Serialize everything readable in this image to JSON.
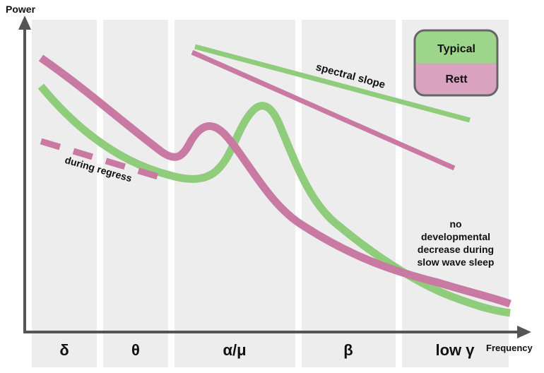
{
  "axes": {
    "y_label": "Power",
    "x_label": "Frequency"
  },
  "bands": [
    "δ",
    "θ",
    "α/μ",
    "β",
    "low γ"
  ],
  "legend": [
    "Typical",
    "Rett"
  ],
  "annotations": {
    "spectral_slope": "spectral slope",
    "during_regress": "during regress",
    "sleep_note": [
      "no",
      "developmental",
      "decrease during",
      "slow wave sleep"
    ]
  }
}
